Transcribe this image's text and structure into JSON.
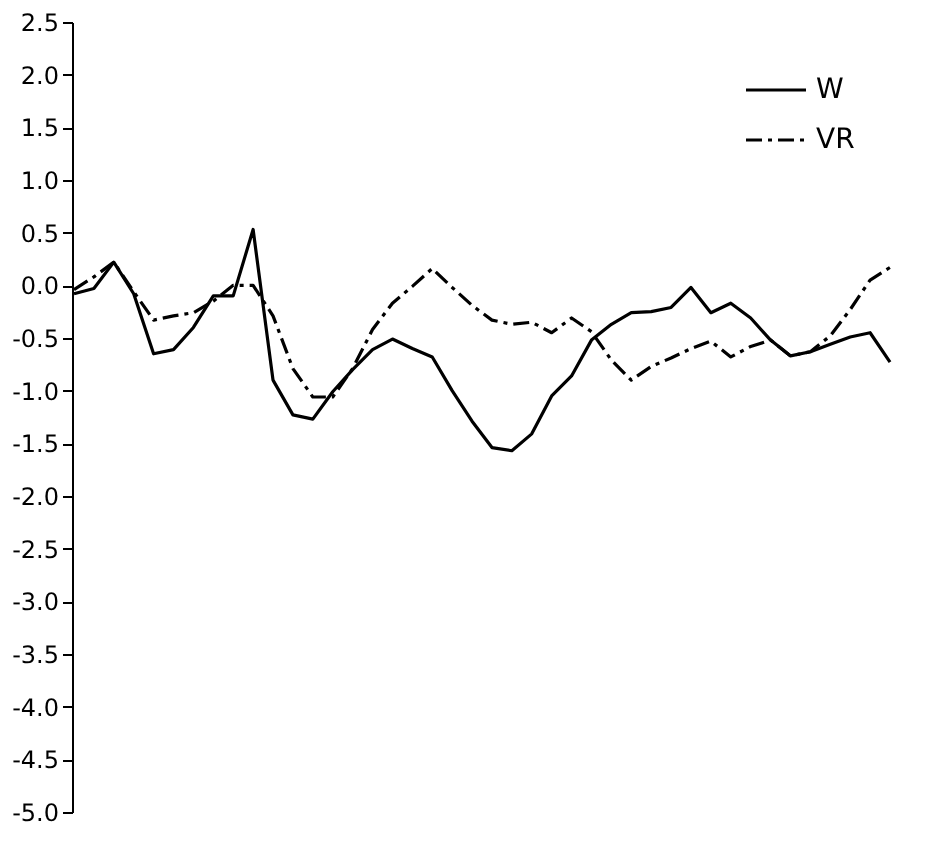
{
  "chart_data": {
    "type": "line",
    "ylim": [
      -5.0,
      2.5
    ],
    "categories": [
      null,
      null,
      null,
      null,
      null,
      null,
      null,
      null,
      null,
      null,
      null,
      null,
      null,
      null,
      null,
      null,
      null,
      null,
      null,
      null,
      null,
      null,
      null,
      null,
      null,
      null,
      null,
      null,
      null,
      null,
      null,
      null,
      null,
      null,
      null,
      null,
      null,
      null,
      null,
      null,
      null,
      null
    ],
    "yticks": [
      {
        "value": 2.5,
        "label": "2.5"
      },
      {
        "value": 2.0,
        "label": "2.0"
      },
      {
        "value": 1.5,
        "label": "1.5"
      },
      {
        "value": 1.0,
        "label": "1.0"
      },
      {
        "value": 0.5,
        "label": "0.5"
      },
      {
        "value": 0.0,
        "label": "0.0"
      },
      {
        "value": -0.5,
        "label": "-0.5"
      },
      {
        "value": -1.0,
        "label": "-1.0"
      },
      {
        "value": -1.5,
        "label": "-1.5"
      },
      {
        "value": -2.0,
        "label": "-2.0"
      },
      {
        "value": -2.5,
        "label": "-2.5"
      },
      {
        "value": -3.0,
        "label": "-3.0"
      },
      {
        "value": -3.5,
        "label": "-3.5"
      },
      {
        "value": -4.0,
        "label": "-4.0"
      },
      {
        "value": -4.5,
        "label": "-4.5"
      },
      {
        "value": -5.0,
        "label": "-5.0"
      }
    ],
    "tick_labels": "y",
    "grid": false,
    "legend": "top right",
    "series": [
      {
        "name": "W",
        "color": "#000000",
        "line_style": "solid",
        "values": [
          -0.08,
          -0.03,
          0.22,
          -0.08,
          -0.65,
          -0.61,
          -0.4,
          -0.1,
          -0.1,
          0.53,
          -0.9,
          -1.23,
          -1.27,
          -1.01,
          -0.8,
          -0.61,
          -0.51,
          -0.6,
          -0.68,
          -1.0,
          -1.29,
          -1.54,
          -1.57,
          -1.41,
          -1.05,
          -0.86,
          -0.52,
          -0.37,
          -0.26,
          -0.25,
          -0.21,
          -0.02,
          -0.26,
          -0.17,
          -0.31,
          -0.52,
          -0.67,
          -0.63,
          -0.56,
          -0.49,
          -0.45,
          -0.73
        ]
      },
      {
        "name": "VR",
        "color": "#000000",
        "line_style": "dashed",
        "values": [
          -0.04,
          0.08,
          0.22,
          -0.06,
          -0.33,
          -0.29,
          -0.26,
          -0.15,
          0.0,
          0.0,
          -0.29,
          -0.79,
          -1.06,
          -1.06,
          -0.79,
          -0.42,
          -0.17,
          -0.01,
          0.16,
          -0.02,
          -0.19,
          -0.33,
          -0.37,
          -0.35,
          -0.45,
          -0.31,
          -0.44,
          -0.71,
          -0.9,
          -0.77,
          -0.69,
          -0.6,
          -0.53,
          -0.68,
          -0.58,
          -0.52,
          -0.67,
          -0.63,
          -0.48,
          -0.23,
          0.05,
          0.17
        ]
      }
    ]
  }
}
